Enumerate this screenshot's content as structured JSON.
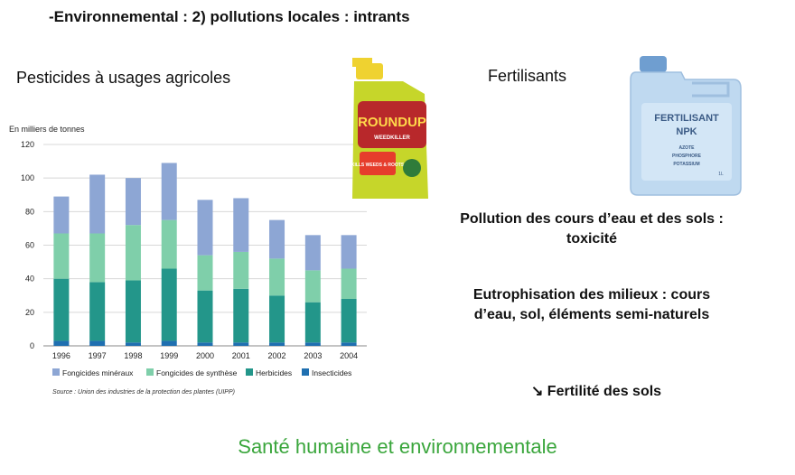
{
  "title": "-Environnemental : 2) pollutions locales : intrants",
  "pesticides_label": "Pesticides à usages agricoles",
  "fertilisants_label": "Fertilisants",
  "pollution_text": "Pollution des cours d’eau et des sols : toxicité",
  "eutrophisation_text": "Eutrophisation des milieux : cours d’eau, sol, éléments semi-naturels",
  "fertilite_text": "↘ Fertilité des sols",
  "footer_text": "Santé humaine et environnementale",
  "roundup": {
    "brand": "ROUNDUP",
    "sub": "WEEDKILLER",
    "badge": "KILLS WEEDS & ROOTS",
    "colors": {
      "bottle": "#c6d62a",
      "cap": "#efd230",
      "label": "#b8282b",
      "tag": "#e63d2c"
    }
  },
  "jerrycan": {
    "title_line1": "FERTILISANT",
    "title_line2": "NPK",
    "lines": [
      "AZOTE",
      "PHOSPHORE",
      "POTASSIUM"
    ],
    "volume": "1L",
    "colors": {
      "body": "#bfd9f0",
      "cap": "#6f9ed0",
      "label_text": "#3a5a85"
    }
  },
  "chart_data": {
    "type": "bar",
    "stacked": true,
    "ylabel": "En milliers de tonnes",
    "ylim": [
      0,
      120
    ],
    "yticks": [
      0,
      20,
      40,
      60,
      80,
      100,
      120
    ],
    "categories": [
      "1996",
      "1997",
      "1998",
      "1999",
      "2000",
      "2001",
      "2002",
      "2003",
      "2004"
    ],
    "series": [
      {
        "name": "Insecticides",
        "color": "#1f6fb0",
        "values": [
          3,
          3,
          2,
          3,
          2,
          2,
          2,
          2,
          2
        ]
      },
      {
        "name": "Herbicides",
        "color": "#23968a",
        "values": [
          37,
          35,
          37,
          43,
          31,
          32,
          28,
          24,
          26
        ]
      },
      {
        "name": "Fongicides de synthèse",
        "color": "#7fcfaa",
        "values": [
          27,
          29,
          33,
          29,
          21,
          22,
          22,
          19,
          18
        ]
      },
      {
        "name": "Fongicides minéraux",
        "color": "#8da6d4",
        "values": [
          22,
          35,
          28,
          34,
          33,
          32,
          23,
          21,
          20
        ]
      }
    ],
    "legend_order": [
      "Fongicides minéraux",
      "Fongicides de synthèse",
      "Herbicides",
      "Insecticides"
    ],
    "legend_position": "bottom",
    "grid": true,
    "source": "Source : Union des industries de la protection des plantes (UIPP)"
  }
}
